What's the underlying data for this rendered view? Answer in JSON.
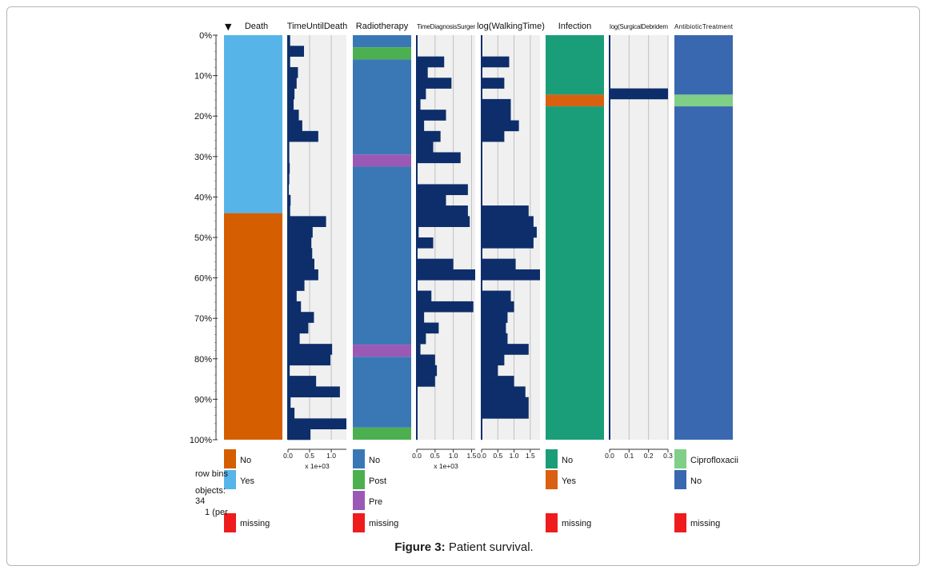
{
  "figure": {
    "caption_label": "Figure 3:",
    "caption_text": "Patient survival."
  },
  "info": {
    "row_bins": "row bins",
    "objects": "objects:",
    "objects_count": "34",
    "per": "1 (per"
  },
  "colors": {
    "yes_death": "#56b4e9",
    "no_death": "#d55e00",
    "bar": "#0d2e6b",
    "panel_bg": "#f0f0f0",
    "radio_no": "#3a78b5",
    "radio_post": "#4caf50",
    "radio_pre": "#9b59b6",
    "infection_no": "#1a9e7a",
    "infection_yes": "#d86010",
    "abx_cipro": "#7fcf86",
    "abx_no": "#3a68b0",
    "missing": "#ee1c1c"
  },
  "chart_data": {
    "type": "table",
    "sort_marker": "▼",
    "y_ticks": [
      "0%",
      "10%",
      "20%",
      "30%",
      "40%",
      "50%",
      "60%",
      "70%",
      "80%",
      "90%",
      "100%"
    ],
    "columns": [
      {
        "key": "death",
        "title": "Death",
        "kind": "categorical",
        "segments": [
          {
            "label": "Yes",
            "start": 0,
            "end": 44,
            "color": "#56b4e9"
          },
          {
            "label": "No",
            "start": 44,
            "end": 100,
            "color": "#d55e00"
          }
        ],
        "legend": [
          {
            "label": "No",
            "color": "#d55e00"
          },
          {
            "label": "Yes",
            "color": "#56b4e9"
          }
        ],
        "missing_label": "missing"
      },
      {
        "key": "time_until_death",
        "title": "TimeUntilDeath",
        "kind": "numeric",
        "xmax": 1.35,
        "ticks": [
          "0.0",
          "0.5",
          "1.0"
        ],
        "tick_values": [
          0,
          0.5,
          1.0
        ],
        "scale_label": "x 1e+03",
        "values": [
          0.05,
          0.37,
          0.05,
          0.23,
          0.2,
          0.15,
          0.13,
          0.25,
          0.33,
          0.7,
          0.03,
          0.03,
          0.04,
          0.03,
          0.02,
          0.06,
          0.05,
          0.88,
          0.57,
          0.54,
          0.56,
          0.61,
          0.7,
          0.38,
          0.2,
          0.3,
          0.6,
          0.47,
          0.27,
          1.02,
          0.98,
          0.04,
          0.65,
          1.2,
          0.06,
          0.15,
          1.35,
          0.52
        ]
      },
      {
        "key": "radiotherapy",
        "title": "Radiotherapy",
        "kind": "categorical",
        "segments": [
          {
            "label": "No",
            "start": 0,
            "end": 3,
            "color": "#3a78b5"
          },
          {
            "label": "Post",
            "start": 3,
            "end": 6,
            "color": "#4caf50"
          },
          {
            "label": "No",
            "start": 6,
            "end": 29.5,
            "color": "#3a78b5"
          },
          {
            "label": "Pre",
            "start": 29.5,
            "end": 32.5,
            "color": "#9b59b6"
          },
          {
            "label": "No",
            "start": 32.5,
            "end": 76.5,
            "color": "#3a78b5"
          },
          {
            "label": "Pre",
            "start": 76.5,
            "end": 79.5,
            "color": "#9b59b6"
          },
          {
            "label": "No",
            "start": 79.5,
            "end": 97,
            "color": "#3a78b5"
          },
          {
            "label": "Post",
            "start": 97,
            "end": 100,
            "color": "#4caf50"
          }
        ],
        "legend": [
          {
            "label": "No",
            "color": "#3a78b5"
          },
          {
            "label": "Post",
            "color": "#4caf50"
          },
          {
            "label": "Pre",
            "color": "#9b59b6"
          }
        ],
        "missing_label": "missing"
      },
      {
        "key": "time_diagnosis_surgery",
        "title": "TimeDiagnosisSurger",
        "kind": "numeric",
        "xmax": 1.6,
        "ticks": [
          "0.0",
          "0.5",
          "1.0",
          "1.5"
        ],
        "tick_values": [
          0,
          0.5,
          1.0,
          1.5
        ],
        "scale_label": "x 1e+03",
        "values": [
          0.02,
          0.02,
          0.75,
          0.3,
          0.95,
          0.25,
          0.1,
          0.8,
          0.2,
          0.65,
          0.45,
          1.2,
          0.02,
          0.02,
          1.4,
          0.8,
          1.4,
          1.45,
          0.05,
          0.45,
          0.02,
          1.0,
          1.6,
          0.02,
          0.4,
          1.55,
          0.2,
          0.6,
          0.25,
          0.1,
          0.5,
          0.55,
          0.5,
          0.02,
          0.02,
          0.02,
          0.02,
          0.02
        ]
      },
      {
        "key": "log_walking_time",
        "title": "log(WalkingTime)",
        "kind": "numeric",
        "xmax": 1.8,
        "ticks": [
          "0.0",
          "0.5",
          "1.0",
          "1.5"
        ],
        "tick_values": [
          0,
          0.5,
          1.0,
          1.5
        ],
        "scale_label": "",
        "values": [
          0.02,
          0.02,
          0.85,
          0.02,
          0.7,
          0.02,
          0.9,
          0.9,
          1.15,
          0.7,
          0.02,
          0.02,
          0.02,
          0.02,
          0.02,
          0.02,
          1.45,
          1.6,
          1.7,
          1.6,
          0.02,
          1.05,
          1.8,
          0.02,
          0.9,
          1.0,
          0.8,
          0.75,
          0.8,
          1.45,
          0.7,
          0.5,
          1.0,
          1.35,
          1.45,
          1.45,
          0.02,
          0.02
        ]
      },
      {
        "key": "infection",
        "title": "Infection",
        "kind": "categorical",
        "segments": [
          {
            "label": "No",
            "start": 0,
            "end": 14.7,
            "color": "#1a9e7a"
          },
          {
            "label": "Yes",
            "start": 14.7,
            "end": 17.6,
            "color": "#d86010"
          },
          {
            "label": "No",
            "start": 17.6,
            "end": 100,
            "color": "#1a9e7a"
          }
        ],
        "legend": [
          {
            "label": "No",
            "color": "#1a9e7a"
          },
          {
            "label": "Yes",
            "color": "#d86010"
          }
        ],
        "missing_label": "missing"
      },
      {
        "key": "log_surgical_debridement",
        "title": "log(SurgicalDebridem",
        "kind": "numeric",
        "xmax": 0.3,
        "ticks": [
          "0.0",
          "0.1",
          "0.2",
          "0.3"
        ],
        "tick_values": [
          0,
          0.1,
          0.2,
          0.3
        ],
        "scale_label": "",
        "values": [
          0.0,
          0.0,
          0.0,
          0.0,
          0.0,
          0.3,
          0.0,
          0.0,
          0.0,
          0.0,
          0.0,
          0.0,
          0.0,
          0.0,
          0.0,
          0.0,
          0.0,
          0.0,
          0.0,
          0.0,
          0.0,
          0.0,
          0.0,
          0.0,
          0.0,
          0.0,
          0.0,
          0.0,
          0.0,
          0.0,
          0.0,
          0.0,
          0.0,
          0.0,
          0.0,
          0.0,
          0.0,
          0.0
        ]
      },
      {
        "key": "antibiotic_treatment",
        "title": "AntibioticTreatment",
        "kind": "categorical",
        "segments": [
          {
            "label": "No",
            "start": 0,
            "end": 14.7,
            "color": "#3a68b0"
          },
          {
            "label": "Ciprofloxacin",
            "start": 14.7,
            "end": 17.6,
            "color": "#7fcf86"
          },
          {
            "label": "No",
            "start": 17.6,
            "end": 100,
            "color": "#3a68b0"
          }
        ],
        "legend": [
          {
            "label": "Ciprofloxacii",
            "color": "#7fcf86"
          },
          {
            "label": "No",
            "color": "#3a68b0"
          }
        ],
        "missing_label": "missing"
      }
    ]
  }
}
